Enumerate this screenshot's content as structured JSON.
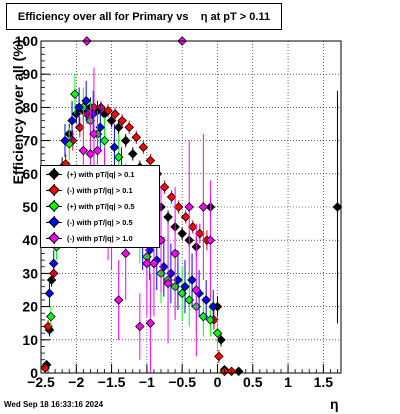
{
  "title": "Efficiency over all for Primary vs    η at pT > 0.11",
  "footer": "Wed Sep 18 16:33:16 2024",
  "chart_data": {
    "type": "scatter",
    "title": "Efficiency over all for Primary vs    η at pT > 0.11",
    "xlabel": "η",
    "ylabel": "Efficiency over all (%)",
    "xlim": [
      -2.5,
      1.75
    ],
    "ylim": [
      0,
      100
    ],
    "grid": true,
    "legend_position": "center-left",
    "xticks": [
      "-2.5",
      "-2",
      "-1.5",
      "-1",
      "-0.5",
      "0",
      "0.5",
      "1",
      "1.5"
    ],
    "yticks": [
      "0",
      "10",
      "20",
      "30",
      "40",
      "50",
      "60",
      "70",
      "80",
      "90",
      "100"
    ],
    "series": [
      {
        "name": "(+) with pT/|q| > 0.1",
        "color": "#000000",
        "points": [
          {
            "x": -2.42,
            "y": 2.5,
            "err": 1
          },
          {
            "x": -2.38,
            "y": 13,
            "err": 2
          },
          {
            "x": -2.35,
            "y": 28,
            "err": 2
          },
          {
            "x": -2.3,
            "y": 45,
            "err": 3
          },
          {
            "x": -2.2,
            "y": 62,
            "err": 3
          },
          {
            "x": -2.1,
            "y": 72,
            "err": 3
          },
          {
            "x": -2.0,
            "y": 78,
            "err": 3
          },
          {
            "x": -1.9,
            "y": 79,
            "err": 3
          },
          {
            "x": -1.8,
            "y": 80,
            "err": 3
          },
          {
            "x": -1.7,
            "y": 79,
            "err": 3
          },
          {
            "x": -1.6,
            "y": 78,
            "err": 2
          },
          {
            "x": -1.5,
            "y": 76,
            "err": 2
          },
          {
            "x": -1.4,
            "y": 74,
            "err": 2
          },
          {
            "x": -1.3,
            "y": 70,
            "err": 2
          },
          {
            "x": -1.2,
            "y": 66,
            "err": 2
          },
          {
            "x": -1.1,
            "y": 62,
            "err": 2
          },
          {
            "x": -1.0,
            "y": 58,
            "err": 2
          },
          {
            "x": -0.9,
            "y": 54,
            "err": 2
          },
          {
            "x": -0.8,
            "y": 50,
            "err": 2
          },
          {
            "x": -0.7,
            "y": 47,
            "err": 2
          },
          {
            "x": -0.6,
            "y": 44,
            "err": 2
          },
          {
            "x": -0.5,
            "y": 42,
            "err": 2
          },
          {
            "x": -0.4,
            "y": 40,
            "err": 2
          },
          {
            "x": -0.3,
            "y": 38,
            "err": 3
          },
          {
            "x": -0.1,
            "y": 50,
            "err": 3
          },
          {
            "x": 0.0,
            "y": 20,
            "err": 3
          },
          {
            "x": 0.05,
            "y": 10,
            "err": 2
          },
          {
            "x": 0.1,
            "y": 1,
            "err": 1
          },
          {
            "x": 0.3,
            "y": 0.5,
            "err": 0.5
          },
          {
            "x": 1.7,
            "y": 50,
            "err": 35
          }
        ]
      },
      {
        "name": "(-) with pT/|q| > 0.1",
        "color": "#ff0000",
        "points": [
          {
            "x": -2.44,
            "y": 1.5,
            "err": 1
          },
          {
            "x": -2.4,
            "y": 14,
            "err": 2
          },
          {
            "x": -2.32,
            "y": 30,
            "err": 2
          },
          {
            "x": -2.26,
            "y": 47,
            "err": 3
          },
          {
            "x": -2.15,
            "y": 63,
            "err": 3
          },
          {
            "x": -2.05,
            "y": 70,
            "err": 3
          },
          {
            "x": -1.95,
            "y": 74,
            "err": 3
          },
          {
            "x": -1.85,
            "y": 78,
            "err": 3
          },
          {
            "x": -1.75,
            "y": 80,
            "err": 3
          },
          {
            "x": -1.65,
            "y": 80,
            "err": 2
          },
          {
            "x": -1.55,
            "y": 79,
            "err": 2
          },
          {
            "x": -1.45,
            "y": 78,
            "err": 2
          },
          {
            "x": -1.35,
            "y": 76,
            "err": 2
          },
          {
            "x": -1.25,
            "y": 74,
            "err": 2
          },
          {
            "x": -1.15,
            "y": 71,
            "err": 2
          },
          {
            "x": -1.05,
            "y": 68,
            "err": 2
          },
          {
            "x": -0.95,
            "y": 64,
            "err": 2
          },
          {
            "x": -0.85,
            "y": 60,
            "err": 2
          },
          {
            "x": -0.75,
            "y": 56,
            "err": 2
          },
          {
            "x": -0.65,
            "y": 53,
            "err": 2
          },
          {
            "x": -0.55,
            "y": 50,
            "err": 2
          },
          {
            "x": -0.45,
            "y": 47,
            "err": 2
          },
          {
            "x": -0.35,
            "y": 44,
            "err": 2
          },
          {
            "x": -0.25,
            "y": 42,
            "err": 3
          },
          {
            "x": -0.15,
            "y": 40,
            "err": 3
          },
          {
            "x": -0.05,
            "y": 16,
            "err": 3
          },
          {
            "x": 0.02,
            "y": 5,
            "err": 2
          },
          {
            "x": 0.1,
            "y": 0.5,
            "err": 0.5
          },
          {
            "x": 0.2,
            "y": 0.5,
            "err": 0.5
          }
        ]
      },
      {
        "name": "(+) with pT/|q| > 0.5",
        "color": "#00ff00",
        "points": [
          {
            "x": -2.36,
            "y": 17,
            "err": 3
          },
          {
            "x": -2.28,
            "y": 38,
            "err": 4
          },
          {
            "x": -2.18,
            "y": 55,
            "err": 5
          },
          {
            "x": -2.1,
            "y": 69,
            "err": 5
          },
          {
            "x": -2.02,
            "y": 84,
            "err": 6
          },
          {
            "x": -1.9,
            "y": 80,
            "err": 6
          },
          {
            "x": -1.8,
            "y": 76,
            "err": 6
          },
          {
            "x": -1.7,
            "y": 72,
            "err": 7
          },
          {
            "x": -1.6,
            "y": 70,
            "err": 7
          },
          {
            "x": -1.4,
            "y": 65,
            "err": 7
          },
          {
            "x": -1.3,
            "y": 55,
            "err": 8
          },
          {
            "x": -1.2,
            "y": 48,
            "err": 8
          },
          {
            "x": -1.1,
            "y": 42,
            "err": 9
          },
          {
            "x": -1.0,
            "y": 35,
            "err": 9
          },
          {
            "x": -0.9,
            "y": 33,
            "err": 9
          },
          {
            "x": -0.8,
            "y": 30,
            "err": 9
          },
          {
            "x": -0.7,
            "y": 28,
            "err": 9
          },
          {
            "x": -0.6,
            "y": 26,
            "err": 9
          },
          {
            "x": -0.5,
            "y": 24,
            "err": 8
          },
          {
            "x": -0.4,
            "y": 22,
            "err": 8
          },
          {
            "x": -0.3,
            "y": 20,
            "err": 8
          },
          {
            "x": -0.2,
            "y": 17,
            "err": 6
          },
          {
            "x": -0.1,
            "y": 16,
            "err": 5
          },
          {
            "x": 0.0,
            "y": 12,
            "err": 4
          }
        ]
      },
      {
        "name": "(-) with pT/|q| > 0.5",
        "color": "#0000ff",
        "points": [
          {
            "x": -2.38,
            "y": 24,
            "err": 4
          },
          {
            "x": -2.32,
            "y": 33,
            "err": 4
          },
          {
            "x": -2.24,
            "y": 56,
            "err": 5
          },
          {
            "x": -2.16,
            "y": 70,
            "err": 5
          },
          {
            "x": -2.06,
            "y": 76,
            "err": 6
          },
          {
            "x": -1.96,
            "y": 80,
            "err": 6
          },
          {
            "x": -1.86,
            "y": 82,
            "err": 6
          },
          {
            "x": -1.76,
            "y": 78,
            "err": 7
          },
          {
            "x": -1.66,
            "y": 74,
            "err": 7
          },
          {
            "x": -1.46,
            "y": 68,
            "err": 7
          },
          {
            "x": -1.36,
            "y": 60,
            "err": 8
          },
          {
            "x": -1.26,
            "y": 53,
            "err": 8
          },
          {
            "x": -1.16,
            "y": 46,
            "err": 8
          },
          {
            "x": -1.06,
            "y": 40,
            "err": 9
          },
          {
            "x": -0.96,
            "y": 37,
            "err": 9
          },
          {
            "x": -0.86,
            "y": 34,
            "err": 9
          },
          {
            "x": -0.76,
            "y": 32,
            "err": 9
          },
          {
            "x": -0.66,
            "y": 30,
            "err": 9
          },
          {
            "x": -0.56,
            "y": 28,
            "err": 9
          },
          {
            "x": -0.46,
            "y": 26,
            "err": 8
          },
          {
            "x": -0.36,
            "y": 28,
            "err": 8
          },
          {
            "x": -0.26,
            "y": 24,
            "err": 7
          },
          {
            "x": -0.16,
            "y": 22,
            "err": 6
          },
          {
            "x": -0.06,
            "y": 20,
            "err": 5
          }
        ]
      },
      {
        "name": "(-) with pT/|q| > 1.0",
        "color": "#ff00ff",
        "points": [
          {
            "x": -1.85,
            "y": 100,
            "err": 0
          },
          {
            "x": -1.9,
            "y": 67,
            "err": 12
          },
          {
            "x": -1.8,
            "y": 66,
            "err": 14
          },
          {
            "x": -1.75,
            "y": 72,
            "err": 20
          },
          {
            "x": -1.7,
            "y": 67,
            "err": 12
          },
          {
            "x": -1.6,
            "y": 56,
            "err": 12
          },
          {
            "x": -1.55,
            "y": 48,
            "err": 14
          },
          {
            "x": -1.5,
            "y": 46,
            "err": 15
          },
          {
            "x": -1.4,
            "y": 22,
            "err": 12
          },
          {
            "x": -1.3,
            "y": 36,
            "err": 14
          },
          {
            "x": -1.1,
            "y": 14,
            "err": 10
          },
          {
            "x": -1.0,
            "y": 33,
            "err": 16
          },
          {
            "x": -0.95,
            "y": 15,
            "err": 15
          },
          {
            "x": -0.9,
            "y": 33,
            "err": 16
          },
          {
            "x": -0.8,
            "y": 40,
            "err": 16
          },
          {
            "x": -0.7,
            "y": 27,
            "err": 18
          },
          {
            "x": -0.6,
            "y": 36,
            "err": 20
          },
          {
            "x": -0.5,
            "y": 100,
            "err": 0
          },
          {
            "x": -0.4,
            "y": 50,
            "err": 20
          },
          {
            "x": -0.3,
            "y": 25,
            "err": 20
          },
          {
            "x": -0.2,
            "y": 50,
            "err": 22
          },
          {
            "x": -0.1,
            "y": 40,
            "err": 18
          }
        ]
      }
    ]
  }
}
